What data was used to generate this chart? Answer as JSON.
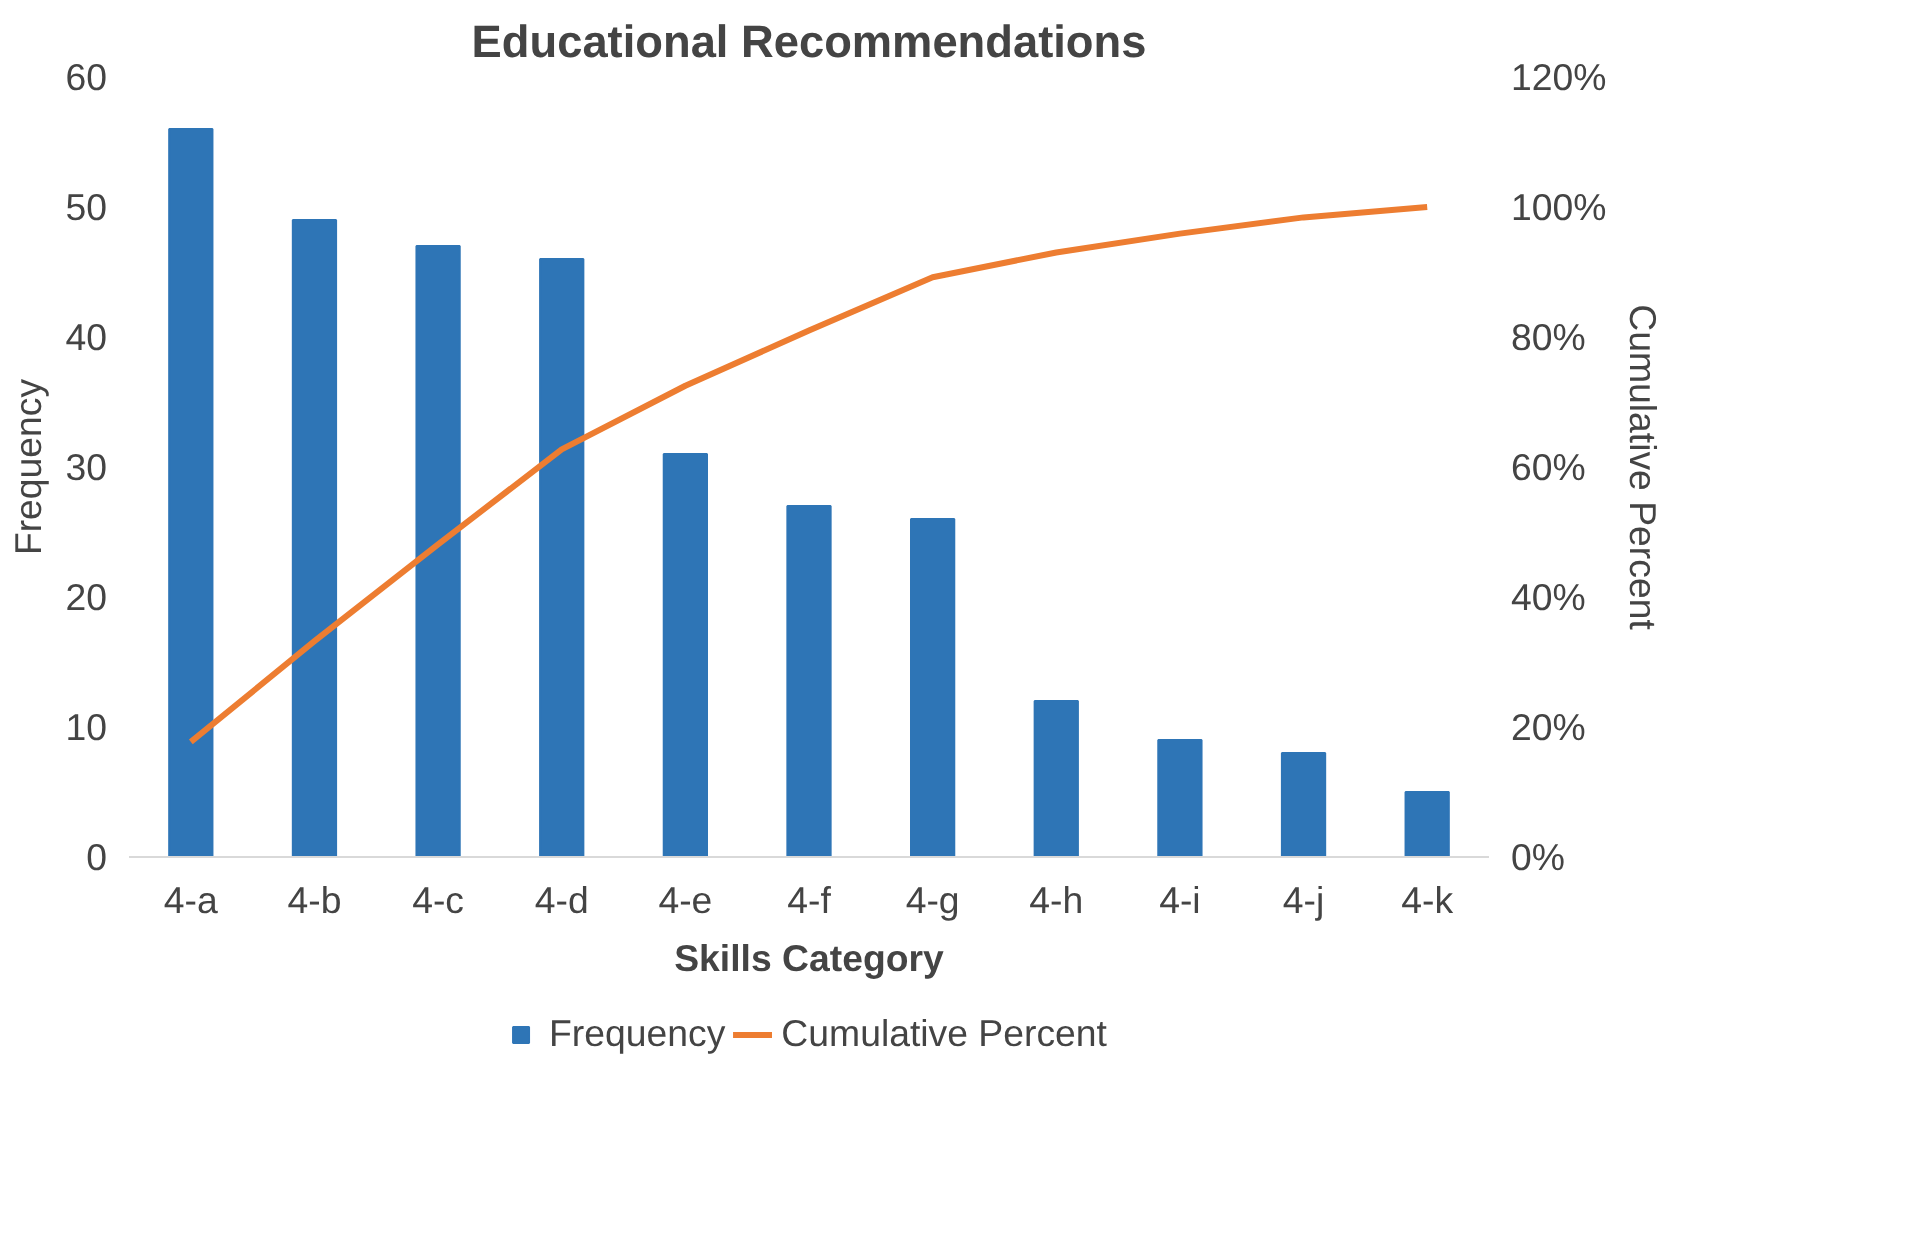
{
  "chart_data": {
    "type": "bar",
    "title": "Educational Recommendations",
    "xlabel": "Skills Category",
    "ylabel": "Frequency",
    "y2label": "Cumulative Percent",
    "categories": [
      "4-a",
      "4-b",
      "4-c",
      "4-d",
      "4-e",
      "4-f",
      "4-g",
      "4-h",
      "4-i",
      "4-j",
      "4-k"
    ],
    "series": [
      {
        "name": "Frequency",
        "color": "#2e75b6",
        "values": [
          56,
          49,
          47,
          46,
          31,
          27,
          26,
          12,
          9,
          8,
          5
        ]
      },
      {
        "name": "Cumulative Percent",
        "type": "line",
        "axis": "y2",
        "color": "#ed7d31",
        "values": [
          17.7,
          33.2,
          48.1,
          62.7,
          72.5,
          81.0,
          89.2,
          93.0,
          95.9,
          98.4,
          100
        ]
      }
    ],
    "ylim": [
      0,
      60
    ],
    "yticks": [
      0,
      10,
      20,
      30,
      40,
      50,
      60
    ],
    "y2lim": [
      0,
      120
    ],
    "y2ticks": [
      {
        "value": 0,
        "label": "0%"
      },
      {
        "value": 20,
        "label": "20%"
      },
      {
        "value": 40,
        "label": "40%"
      },
      {
        "value": 60,
        "label": "60%"
      },
      {
        "value": 80,
        "label": "80%"
      },
      {
        "value": 100,
        "label": "100%"
      },
      {
        "value": 120,
        "label": "120%"
      }
    ],
    "grid": false,
    "legend": "bottom",
    "marker": "none",
    "line_style": "solid"
  }
}
